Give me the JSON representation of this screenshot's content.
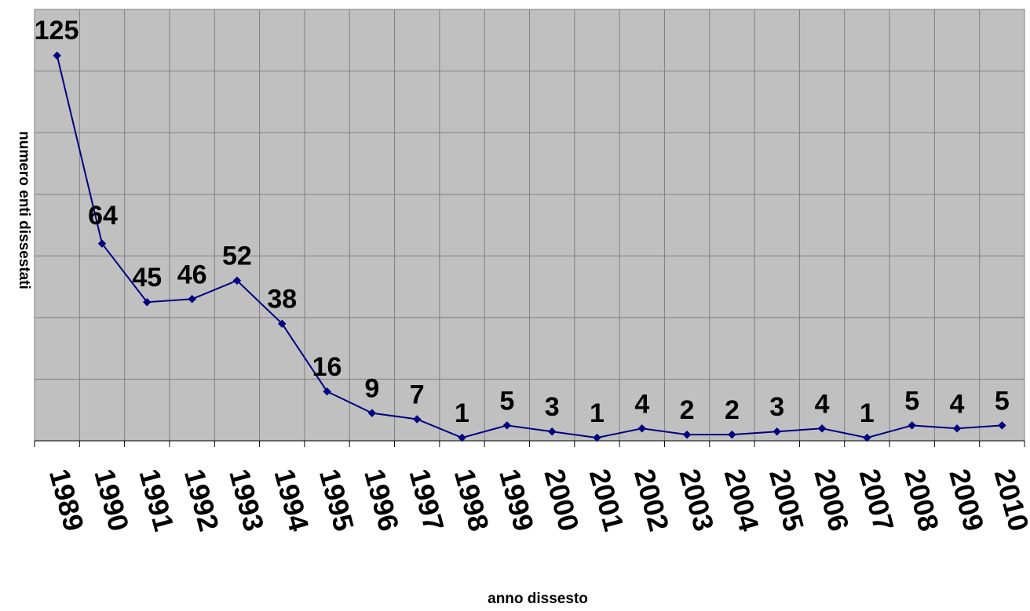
{
  "chart_data": {
    "type": "line",
    "title": "",
    "xlabel": "anno dissesto",
    "ylabel": "numero enti dissestati",
    "categories": [
      "1989",
      "1990",
      "1991",
      "1992",
      "1993",
      "1994",
      "1995",
      "1996",
      "1997",
      "1998",
      "1999",
      "2000",
      "2001",
      "2002",
      "2003",
      "2004",
      "2005",
      "2006",
      "2007",
      "2008",
      "2009",
      "2010"
    ],
    "series": [
      {
        "values": [
          125,
          64,
          45,
          46,
          52,
          38,
          16,
          9,
          7,
          1,
          5,
          3,
          1,
          4,
          2,
          2,
          3,
          4,
          1,
          5,
          4,
          5
        ],
        "color": "#000080",
        "marker": "diamond"
      }
    ],
    "ylim": [
      0,
      140
    ],
    "y_gridline_step": 20,
    "y_tick_labels_shown": false,
    "data_labels_shown": true,
    "grid": true,
    "legend": "none",
    "plot_background": "#c0c0c0",
    "gridline_color": "#808080"
  }
}
